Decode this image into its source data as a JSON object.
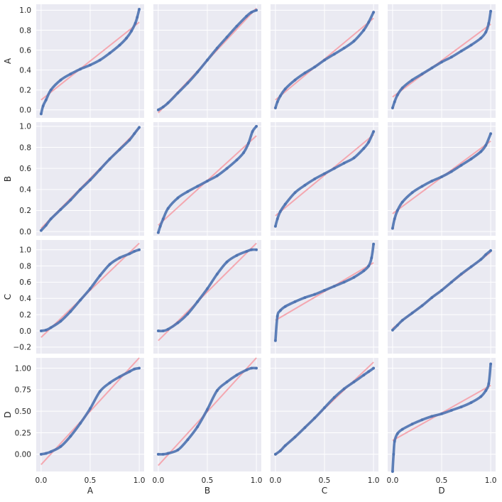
{
  "chart_data": {
    "type": "scatter",
    "layout": "pair-grid 4x4",
    "variables": [
      "A",
      "B",
      "C",
      "D"
    ],
    "xlabels": [
      "A",
      "B",
      "C",
      "D"
    ],
    "ylabels": [
      "A",
      "B",
      "C",
      "D"
    ],
    "xlim": [
      -0.05,
      1.05
    ],
    "xticks": [
      0.0,
      0.5,
      1.0
    ],
    "xtick_labels": [
      "0.0",
      "0.5",
      "1.0"
    ],
    "grid": true,
    "point_color": "#4c72b0",
    "fit_line_color": "#f4a7b0",
    "background_color": "#eaeaf2",
    "rows": [
      {
        "name": "A",
        "ylim": [
          -0.08,
          1.06
        ],
        "yticks": [
          0.0,
          0.2,
          0.4,
          0.6,
          0.8,
          1.0
        ],
        "ytick_labels": [
          "0.0",
          "0.2",
          "0.4",
          "0.6",
          "0.8",
          "1.0"
        ],
        "panels": [
          {
            "x": [
              0.0,
              0.02,
              0.05,
              0.1,
              0.2,
              0.3,
              0.4,
              0.5,
              0.6,
              0.7,
              0.8,
              0.87,
              0.92,
              0.96,
              0.98,
              1.0
            ],
            "y": [
              -0.04,
              0.04,
              0.1,
              0.2,
              0.3,
              0.36,
              0.41,
              0.45,
              0.5,
              0.57,
              0.65,
              0.72,
              0.79,
              0.87,
              0.93,
              1.01
            ],
            "fit": [
              0.1,
              0.88
            ]
          },
          {
            "x": [
              0.0,
              0.05,
              0.1,
              0.2,
              0.3,
              0.4,
              0.5,
              0.6,
              0.7,
              0.8,
              0.9,
              0.95,
              1.0
            ],
            "y": [
              0.0,
              0.03,
              0.07,
              0.17,
              0.27,
              0.38,
              0.5,
              0.62,
              0.73,
              0.84,
              0.94,
              0.98,
              1.0
            ],
            "fit": [
              -0.03,
              1.02
            ]
          },
          {
            "x": [
              0.0,
              0.02,
              0.05,
              0.1,
              0.2,
              0.3,
              0.4,
              0.5,
              0.6,
              0.7,
              0.8,
              0.9,
              0.95,
              1.0
            ],
            "y": [
              0.02,
              0.08,
              0.14,
              0.21,
              0.3,
              0.37,
              0.43,
              0.5,
              0.56,
              0.62,
              0.69,
              0.8,
              0.88,
              0.98
            ],
            "fit": [
              0.1,
              0.92
            ]
          },
          {
            "x": [
              0.0,
              0.02,
              0.05,
              0.1,
              0.2,
              0.3,
              0.4,
              0.5,
              0.6,
              0.7,
              0.8,
              0.9,
              0.95,
              0.98,
              1.0
            ],
            "y": [
              0.02,
              0.08,
              0.15,
              0.22,
              0.3,
              0.36,
              0.42,
              0.48,
              0.53,
              0.59,
              0.65,
              0.72,
              0.78,
              0.87,
              0.99
            ],
            "fit": [
              0.13,
              0.86
            ]
          }
        ]
      },
      {
        "name": "B",
        "ylim": [
          -0.04,
          1.04
        ],
        "yticks": [
          0.0,
          0.2,
          0.4,
          0.6,
          0.8,
          1.0
        ],
        "ytick_labels": [
          "0.0",
          "0.2",
          "0.4",
          "0.6",
          "0.8",
          "1.0"
        ],
        "panels": [
          {
            "x": [
              0.0,
              0.05,
              0.1,
              0.2,
              0.3,
              0.4,
              0.5,
              0.6,
              0.7,
              0.8,
              0.9,
              0.95,
              1.0
            ],
            "y": [
              0.01,
              0.06,
              0.12,
              0.21,
              0.3,
              0.4,
              0.49,
              0.59,
              0.69,
              0.78,
              0.87,
              0.93,
              0.99
            ],
            "fit": [
              0.03,
              0.98
            ]
          },
          {
            "x": [
              0.0,
              0.02,
              0.05,
              0.1,
              0.2,
              0.3,
              0.4,
              0.5,
              0.6,
              0.7,
              0.8,
              0.87,
              0.92,
              0.96,
              1.0
            ],
            "y": [
              -0.01,
              0.05,
              0.12,
              0.22,
              0.32,
              0.38,
              0.43,
              0.48,
              0.53,
              0.6,
              0.68,
              0.75,
              0.84,
              0.95,
              1.0
            ],
            "fit": [
              0.06,
              0.91
            ]
          },
          {
            "x": [
              0.0,
              0.02,
              0.05,
              0.1,
              0.2,
              0.3,
              0.4,
              0.5,
              0.6,
              0.7,
              0.8,
              0.9,
              0.95,
              1.0
            ],
            "y": [
              0.05,
              0.12,
              0.19,
              0.26,
              0.37,
              0.44,
              0.5,
              0.55,
              0.6,
              0.65,
              0.7,
              0.79,
              0.85,
              0.95
            ],
            "fit": [
              0.15,
              0.92
            ]
          },
          {
            "x": [
              0.0,
              0.02,
              0.05,
              0.1,
              0.2,
              0.3,
              0.4,
              0.5,
              0.6,
              0.7,
              0.8,
              0.9,
              0.95,
              1.0
            ],
            "y": [
              0.03,
              0.12,
              0.2,
              0.28,
              0.37,
              0.43,
              0.48,
              0.52,
              0.57,
              0.63,
              0.69,
              0.76,
              0.82,
              0.93
            ],
            "fit": [
              0.17,
              0.86
            ]
          }
        ]
      },
      {
        "name": "C",
        "ylim": [
          -0.28,
          1.12
        ],
        "yticks": [
          -0.2,
          0.0,
          0.2,
          0.4,
          0.6,
          0.8,
          1.0
        ],
        "ytick_labels": [
          "−0.2",
          "0.0",
          "0.2",
          "0.4",
          "0.6",
          "0.8",
          "1.0"
        ],
        "panels": [
          {
            "x": [
              0.0,
              0.05,
              0.1,
              0.2,
              0.3,
              0.4,
              0.5,
              0.6,
              0.7,
              0.8,
              0.9,
              0.95,
              1.0
            ],
            "y": [
              0.0,
              0.01,
              0.04,
              0.12,
              0.24,
              0.38,
              0.52,
              0.68,
              0.82,
              0.9,
              0.95,
              0.98,
              1.0
            ],
            "fit": [
              -0.08,
              1.08
            ]
          },
          {
            "x": [
              0.0,
              0.05,
              0.1,
              0.2,
              0.3,
              0.4,
              0.5,
              0.6,
              0.7,
              0.8,
              0.9,
              0.95,
              1.0
            ],
            "y": [
              0.0,
              0.0,
              0.02,
              0.1,
              0.21,
              0.36,
              0.52,
              0.7,
              0.85,
              0.93,
              0.98,
              1.0,
              1.0
            ],
            "fit": [
              -0.12,
              1.08
            ]
          },
          {
            "x": [
              0.0,
              0.02,
              0.05,
              0.1,
              0.2,
              0.3,
              0.4,
              0.5,
              0.6,
              0.7,
              0.8,
              0.9,
              0.95,
              0.98,
              1.0
            ],
            "y": [
              -0.12,
              0.18,
              0.25,
              0.3,
              0.36,
              0.41,
              0.45,
              0.5,
              0.55,
              0.6,
              0.66,
              0.74,
              0.8,
              0.9,
              1.07
            ],
            "fit": [
              0.13,
              0.84
            ]
          },
          {
            "x": [
              0.0,
              0.05,
              0.1,
              0.2,
              0.3,
              0.4,
              0.5,
              0.6,
              0.7,
              0.8,
              0.9,
              0.95,
              1.0
            ],
            "y": [
              0.01,
              0.07,
              0.13,
              0.22,
              0.31,
              0.41,
              0.5,
              0.6,
              0.7,
              0.79,
              0.88,
              0.94,
              0.99
            ],
            "fit": [
              0.03,
              0.97
            ]
          }
        ]
      },
      {
        "name": "D",
        "ylim": [
          -0.2,
          1.12
        ],
        "yticks": [
          0.0,
          0.25,
          0.5,
          0.75,
          1.0
        ],
        "ytick_labels": [
          "0.00",
          "0.25",
          "0.50",
          "0.75",
          "1.00"
        ],
        "panels": [
          {
            "x": [
              0.0,
              0.05,
              0.1,
              0.2,
              0.3,
              0.4,
              0.5,
              0.6,
              0.7,
              0.8,
              0.9,
              0.95,
              1.0
            ],
            "y": [
              0.0,
              0.01,
              0.03,
              0.09,
              0.21,
              0.36,
              0.53,
              0.73,
              0.83,
              0.9,
              0.96,
              0.99,
              1.0
            ],
            "fit": [
              -0.12,
              1.12
            ]
          },
          {
            "x": [
              0.0,
              0.05,
              0.1,
              0.2,
              0.3,
              0.4,
              0.5,
              0.6,
              0.7,
              0.8,
              0.9,
              0.95,
              1.0
            ],
            "y": [
              0.0,
              0.0,
              0.01,
              0.05,
              0.17,
              0.32,
              0.52,
              0.74,
              0.84,
              0.92,
              0.98,
              1.0,
              1.0
            ],
            "fit": [
              -0.13,
              1.12
            ]
          },
          {
            "x": [
              0.0,
              0.05,
              0.1,
              0.2,
              0.3,
              0.4,
              0.5,
              0.6,
              0.7,
              0.8,
              0.9,
              0.95,
              1.0
            ],
            "y": [
              0.0,
              0.04,
              0.1,
              0.2,
              0.31,
              0.42,
              0.54,
              0.66,
              0.76,
              0.84,
              0.92,
              0.96,
              1.0
            ],
            "fit": [
              -0.01,
              1.07
            ]
          },
          {
            "x": [
              0.0,
              0.01,
              0.02,
              0.05,
              0.1,
              0.2,
              0.3,
              0.4,
              0.5,
              0.6,
              0.7,
              0.8,
              0.9,
              0.95,
              0.98,
              1.0
            ],
            "y": [
              -0.2,
              0.0,
              0.15,
              0.24,
              0.29,
              0.35,
              0.4,
              0.44,
              0.47,
              0.51,
              0.55,
              0.6,
              0.67,
              0.74,
              0.82,
              1.05
            ],
            "fit": [
              0.16,
              0.8
            ]
          }
        ]
      }
    ]
  }
}
